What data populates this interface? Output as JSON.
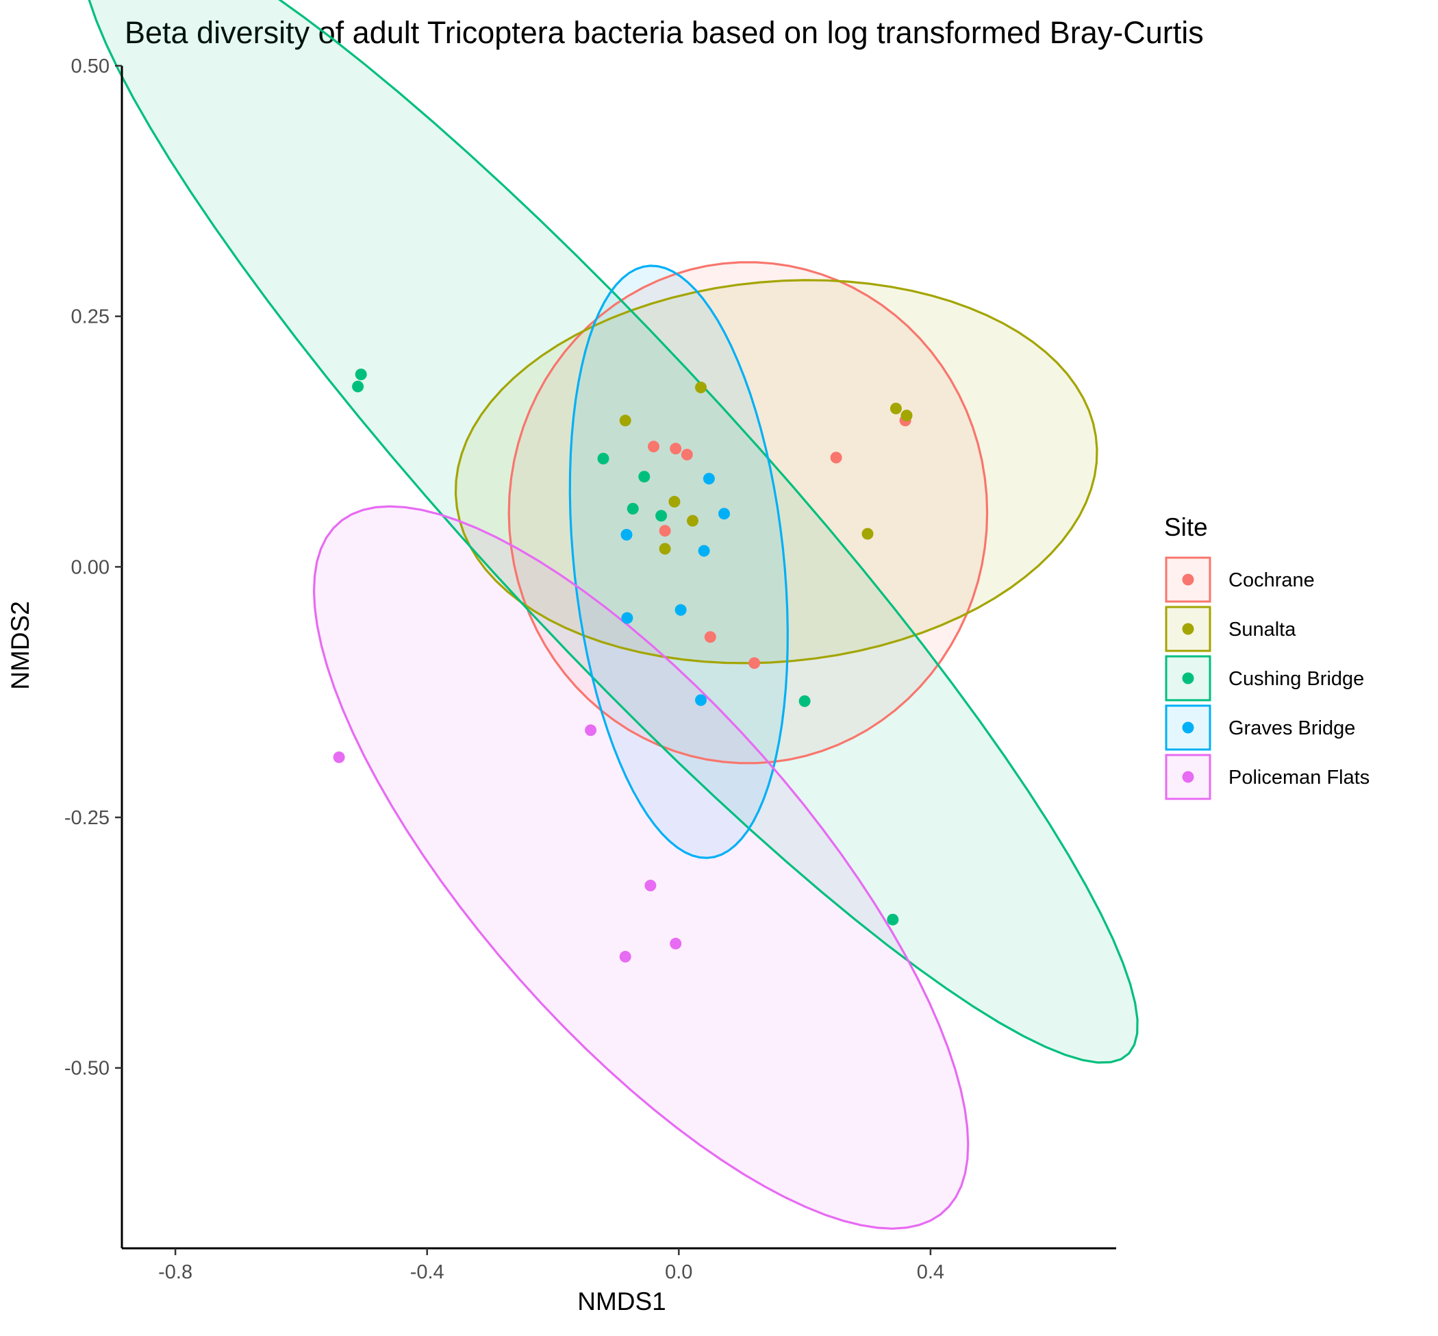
{
  "chart_data": {
    "type": "scatter",
    "title": "Beta diversity of adult Tricoptera bacteria based on log transformed Bray-Curtis",
    "xlabel": "NMDS1",
    "ylabel": "NMDS2",
    "xlim": [
      -0.885,
      0.695
    ],
    "ylim": [
      -0.68,
      0.5
    ],
    "x_ticks": [
      -0.8,
      -0.4,
      0.0,
      0.4
    ],
    "x_tick_labels": [
      "-0.8",
      "-0.4",
      "0.0",
      "0.4"
    ],
    "y_ticks": [
      0.5,
      0.25,
      0.0,
      -0.25,
      -0.5
    ],
    "y_tick_labels": [
      "0.50",
      "0.25",
      "0.00",
      "-0.25",
      "-0.50"
    ],
    "grid": false,
    "legend": {
      "title": "Site",
      "position": "right"
    },
    "series": [
      {
        "name": "Cochrane",
        "color": "#F8766D",
        "points": [
          [
            -0.04,
            0.12
          ],
          [
            -0.005,
            0.118
          ],
          [
            0.013,
            0.112
          ],
          [
            -0.022,
            0.036
          ],
          [
            0.05,
            -0.07
          ],
          [
            0.12,
            -0.096
          ],
          [
            0.25,
            0.109
          ],
          [
            0.36,
            0.146
          ]
        ],
        "ellipse": {
          "cx": 0.11,
          "cy": 0.054,
          "rx": 0.38,
          "ry": 0.25,
          "angle": 0
        }
      },
      {
        "name": "Sunalta",
        "color": "#A3A500",
        "points": [
          [
            -0.085,
            0.146
          ],
          [
            0.035,
            0.179
          ],
          [
            -0.007,
            0.065
          ],
          [
            0.022,
            0.046
          ],
          [
            -0.022,
            0.018
          ],
          [
            0.3,
            0.033
          ],
          [
            0.345,
            0.158
          ],
          [
            0.362,
            0.151
          ]
        ],
        "ellipse": {
          "cx": 0.155,
          "cy": 0.095,
          "rx": 0.51,
          "ry": 0.19,
          "angle": 2.5
        }
      },
      {
        "name": "Cushing Bridge",
        "color": "#00BF7D",
        "points": [
          [
            -0.505,
            0.192
          ],
          [
            -0.51,
            0.18
          ],
          [
            -0.12,
            0.108
          ],
          [
            -0.055,
            0.09
          ],
          [
            -0.073,
            0.058
          ],
          [
            -0.028,
            0.051
          ],
          [
            0.2,
            -0.134
          ],
          [
            0.34,
            -0.352
          ]
        ],
        "ellipse": {
          "cx": -0.11,
          "cy": 0.075,
          "rx": 1.0,
          "ry": 0.17,
          "angle": -33.5
        }
      },
      {
        "name": "Graves Bridge",
        "color": "#00B0F6",
        "points": [
          [
            0.048,
            0.088
          ],
          [
            0.072,
            0.053
          ],
          [
            -0.083,
            0.032
          ],
          [
            0.04,
            0.016
          ],
          [
            -0.082,
            -0.051
          ],
          [
            0.003,
            -0.043
          ],
          [
            0.035,
            -0.133
          ]
        ],
        "ellipse": {
          "cx": 0.0,
          "cy": 0.005,
          "rx": 0.165,
          "ry": 0.3,
          "angle": 12
        }
      },
      {
        "name": "Policeman Flats",
        "color": "#E76BF3",
        "points": [
          [
            -0.54,
            -0.19
          ],
          [
            -0.14,
            -0.163
          ],
          [
            -0.045,
            -0.318
          ],
          [
            -0.085,
            -0.389
          ],
          [
            -0.005,
            -0.376
          ]
        ],
        "ellipse": {
          "cx": -0.06,
          "cy": -0.3,
          "rx": 0.6,
          "ry": 0.2,
          "angle": -32
        }
      }
    ]
  }
}
